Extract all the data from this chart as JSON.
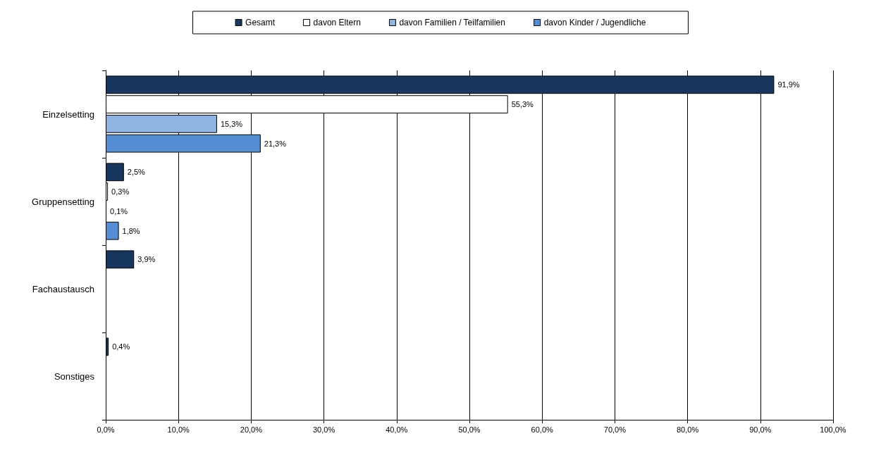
{
  "chart_data": {
    "type": "bar",
    "orientation": "horizontal",
    "categories": [
      "Einzelsetting",
      "Gruppensetting",
      "Fachaustausch",
      "Sonstiges"
    ],
    "series": [
      {
        "name": "Gesamt",
        "color": "#17375e",
        "values": [
          91.9,
          2.5,
          3.9,
          0.4
        ],
        "value_labels": [
          "91,9%",
          "2,5%",
          "3,9%",
          "0,4%"
        ]
      },
      {
        "name": "davon Eltern",
        "color": "#ffffff",
        "values": [
          55.3,
          0.3,
          null,
          null
        ],
        "value_labels": [
          "55,3%",
          "0,3%",
          null,
          null
        ]
      },
      {
        "name": "davon Familien / Teilfamilien",
        "color": "#8eb4e3",
        "values": [
          15.3,
          0.1,
          null,
          null
        ],
        "value_labels": [
          "15,3%",
          "0,1%",
          null,
          null
        ]
      },
      {
        "name": "davon Kinder / Jugendliche",
        "color": "#558ed5",
        "values": [
          21.3,
          1.8,
          null,
          null
        ],
        "value_labels": [
          "21,3%",
          "1,8%",
          null,
          null
        ]
      }
    ],
    "xlim": [
      0,
      100
    ],
    "xticks": [
      {
        "value": 0,
        "label": "0,0%"
      },
      {
        "value": 10,
        "label": "10,0%"
      },
      {
        "value": 20,
        "label": "20,0%"
      },
      {
        "value": 30,
        "label": "30,0%"
      },
      {
        "value": 40,
        "label": "40,0%"
      },
      {
        "value": 50,
        "label": "50,0%"
      },
      {
        "value": 60,
        "label": "60,0%"
      },
      {
        "value": 70,
        "label": "70,0%"
      },
      {
        "value": 80,
        "label": "80,0%"
      },
      {
        "value": 90,
        "label": "90,0%"
      },
      {
        "value": 100,
        "label": "100,0%"
      }
    ],
    "grid": "x",
    "legend": "top"
  }
}
